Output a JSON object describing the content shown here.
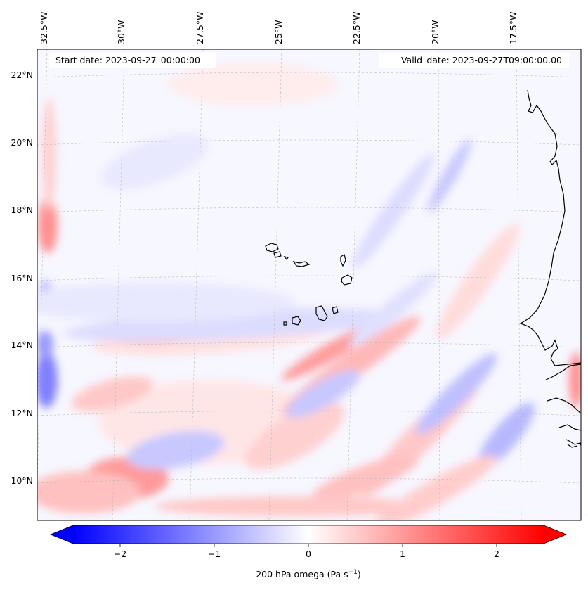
{
  "map": {
    "start_date_label": "Start date: 2023-09-27_00:00:00",
    "valid_date_label": "Valid_date: 2023-09-27T09:00:00.00",
    "longitude_ticks": [
      "32.5°W",
      "30°W",
      "27.5°W",
      "25°W",
      "22.5°W",
      "20°W",
      "17.5°W"
    ],
    "latitude_ticks": [
      "22°N",
      "20°N",
      "18°N",
      "16°N",
      "14°N",
      "12°N",
      "10°N"
    ],
    "gridlines": true
  },
  "colorbar": {
    "label_main": "200 hPa omega (Pa s",
    "label_exp": "−1",
    "label_close": ")",
    "ticks": [
      "−2",
      "−1",
      "0",
      "1",
      "2"
    ],
    "range": [
      -2.7,
      2.7
    ],
    "cmap": "bwr",
    "color_low": "#0000ff",
    "color_mid": "#ffffff",
    "color_high": "#ff0000"
  },
  "colors": {
    "coastline": "#000000",
    "gridline": "#bbbbbb"
  }
}
